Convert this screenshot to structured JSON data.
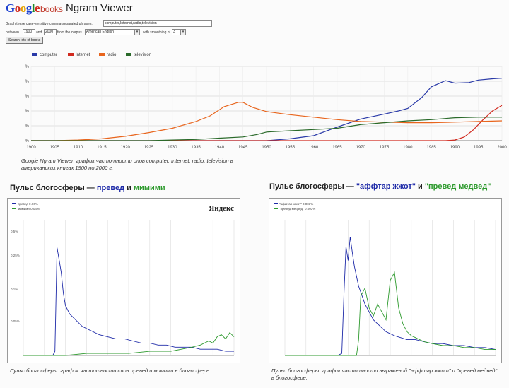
{
  "header": {
    "logo_letters": [
      {
        "ch": "G",
        "color": "b"
      },
      {
        "ch": "o",
        "color": "r"
      },
      {
        "ch": "o",
        "color": "y"
      },
      {
        "ch": "g",
        "color": "b"
      },
      {
        "ch": "l",
        "color": "g"
      },
      {
        "ch": "e",
        "color": "r"
      }
    ],
    "logo_books": "books",
    "logo_ngram": "Ngram Viewer",
    "graph_label": "Graph these case-sensitive comma-separated phrases:",
    "phrases_value": "computer,Internet,radio,television",
    "between_label": "between",
    "year_start": "1900",
    "and_label": "and",
    "year_end": "2000",
    "corpus_label": "from the corpus",
    "corpus_value": "American English",
    "smoothing_label": "with smoothing of",
    "smoothing_value": "3",
    "search_button": "Search lots of books"
  },
  "legend": [
    {
      "name": "computer",
      "color": "#2a3aa8"
    },
    {
      "name": "Internet",
      "color": "#d12a1f"
    },
    {
      "name": "radio",
      "color": "#e8651d"
    },
    {
      "name": "television",
      "color": "#2a6a2a"
    }
  ],
  "chart_data": [
    {
      "type": "line",
      "x_ticks": [
        1900,
        1905,
        1910,
        1915,
        1920,
        1925,
        1930,
        1935,
        1940,
        1945,
        1950,
        1955,
        1960,
        1965,
        1970,
        1975,
        1980,
        1985,
        1990,
        1995,
        2000
      ],
      "y_ticks": [
        "0.0%",
        "0.0024%",
        "0.0048%",
        "0.0072%",
        "0.0096%",
        "0.012%"
      ],
      "ylim": [
        0,
        0.012
      ],
      "xlim": [
        1900,
        2000
      ],
      "grid": true,
      "legend_position": "top-left",
      "series": [
        {
          "name": "computer",
          "color": "#2a3aa8",
          "x": [
            1900,
            1950,
            1955,
            1960,
            1965,
            1970,
            1975,
            1978,
            1980,
            1983,
            1985,
            1988,
            1990,
            1993,
            1995,
            1998,
            2000
          ],
          "y": [
            0,
            0,
            0.0003,
            0.0008,
            0.0022,
            0.0035,
            0.0043,
            0.0048,
            0.0052,
            0.007,
            0.0087,
            0.0097,
            0.0093,
            0.0094,
            0.0098,
            0.01,
            0.0101
          ]
        },
        {
          "name": "Internet",
          "color": "#d12a1f",
          "x": [
            1900,
            1985,
            1988,
            1990,
            1992,
            1994,
            1996,
            1998,
            2000
          ],
          "y": [
            0,
            0,
            0,
            0.0001,
            0.0006,
            0.0018,
            0.0034,
            0.0048,
            0.0057
          ]
        },
        {
          "name": "radio",
          "color": "#e8651d",
          "x": [
            1900,
            1905,
            1910,
            1915,
            1920,
            1925,
            1930,
            1935,
            1938,
            1941,
            1944,
            1945,
            1947,
            1950,
            1955,
            1960,
            1965,
            1970,
            1975,
            1980,
            1985,
            1990,
            1995,
            2000
          ],
          "y": [
            0,
            0,
            0.0001,
            0.0003,
            0.0007,
            0.0013,
            0.002,
            0.0031,
            0.004,
            0.0055,
            0.0062,
            0.0062,
            0.0054,
            0.0047,
            0.0042,
            0.0038,
            0.0034,
            0.0031,
            0.003,
            0.0029,
            0.0029,
            0.003,
            0.0031,
            0.0032
          ]
        },
        {
          "name": "television",
          "color": "#2a6a2a",
          "x": [
            1900,
            1925,
            1930,
            1935,
            1940,
            1945,
            1948,
            1950,
            1955,
            1960,
            1965,
            1970,
            1975,
            1980,
            1985,
            1990,
            1995,
            2000
          ],
          "y": [
            0,
            0,
            0.0001,
            0.0002,
            0.0004,
            0.0006,
            0.001,
            0.0014,
            0.0016,
            0.0018,
            0.002,
            0.0026,
            0.0029,
            0.0032,
            0.0034,
            0.0037,
            0.0038,
            0.0038
          ]
        }
      ]
    },
    {
      "type": "line",
      "title": "Пульс блогосферы — превед и мимими",
      "title_parts": [
        "Пульс блогосферы — ",
        "превед",
        " и ",
        "мимими"
      ],
      "y_ticks": [
        "0.5%",
        "0.25%",
        "0.1%",
        "0.05%"
      ],
      "legend_position": "top-left",
      "legend": [
        "превед 0.06%",
        "мимими 0.04%"
      ],
      "series": [
        {
          "name": "превед",
          "color": "#1e2aa8",
          "x": [
            0,
            5,
            10,
            14,
            15,
            16,
            17,
            18,
            19,
            20,
            22,
            25,
            28,
            32,
            36,
            40,
            44,
            48,
            52,
            56,
            60,
            64,
            68,
            72,
            76,
            80,
            84,
            88,
            92,
            96,
            100
          ],
          "y": [
            0,
            0,
            0,
            0,
            0.02,
            0.52,
            0.46,
            0.4,
            0.3,
            0.24,
            0.2,
            0.17,
            0.14,
            0.12,
            0.1,
            0.09,
            0.08,
            0.08,
            0.07,
            0.06,
            0.06,
            0.05,
            0.05,
            0.04,
            0.04,
            0.04,
            0.03,
            0.03,
            0.03,
            0.02,
            0.02
          ]
        },
        {
          "name": "мимими",
          "color": "#2e9a2e",
          "x": [
            0,
            10,
            20,
            30,
            40,
            50,
            60,
            70,
            75,
            80,
            84,
            88,
            90,
            92,
            94,
            96,
            98,
            100
          ],
          "y": [
            0,
            0,
            0,
            0.01,
            0.01,
            0.01,
            0.02,
            0.02,
            0.03,
            0.04,
            0.05,
            0.07,
            0.06,
            0.09,
            0.1,
            0.08,
            0.11,
            0.09
          ]
        }
      ],
      "caption": "Пульс блогосферы: график частотности слов превед и мимими в блогосфере."
    },
    {
      "type": "line",
      "title": "Пульс блогосферы — \"аффтар жжот\" и \"превед медвед\"",
      "title_parts": [
        "Пульс блогосферы — ",
        "\"аффтар жжот\"",
        " и ",
        "\"превед медвед\""
      ],
      "legend": [
        "\"аффтар жжот\" 0.003%",
        "\"превед медвед\" 0.003%"
      ],
      "legend_position": "top-left",
      "series": [
        {
          "name": "аффтар жжот",
          "color": "#1e2aa8",
          "x": [
            0,
            20,
            25,
            27,
            28,
            29,
            30,
            31,
            32,
            33,
            34,
            35,
            36,
            38,
            40,
            42,
            44,
            46,
            48,
            50,
            52,
            55,
            58,
            62,
            66,
            70,
            75,
            80,
            85,
            90,
            95,
            100
          ],
          "y": [
            0,
            0,
            0,
            0.01,
            0.3,
            0.55,
            0.48,
            0.6,
            0.52,
            0.45,
            0.4,
            0.35,
            0.32,
            0.26,
            0.22,
            0.18,
            0.16,
            0.14,
            0.12,
            0.11,
            0.1,
            0.09,
            0.08,
            0.08,
            0.07,
            0.06,
            0.06,
            0.05,
            0.05,
            0.04,
            0.04,
            0.03
          ]
        },
        {
          "name": "превед медвед",
          "color": "#2e9a2e",
          "x": [
            0,
            34,
            35,
            36,
            38,
            40,
            42,
            44,
            46,
            48,
            50,
            52,
            54,
            56,
            58,
            60,
            62,
            64,
            66,
            70,
            75,
            80,
            85,
            90,
            95,
            100
          ],
          "y": [
            0,
            0,
            0.08,
            0.3,
            0.34,
            0.24,
            0.2,
            0.26,
            0.22,
            0.18,
            0.38,
            0.42,
            0.24,
            0.16,
            0.12,
            0.1,
            0.09,
            0.08,
            0.07,
            0.06,
            0.05,
            0.05,
            0.04,
            0.04,
            0.03,
            0.03
          ]
        }
      ],
      "caption": "Пульс блогосферы: график частотности выражений \"аффтар жжот\" и \"превед медвед\" в блогосфере."
    }
  ],
  "ngram_caption": "Google Ngram Viewer: график частотности слов computer, Internet, radio, television в американских книгах 1900 по 2000 г.",
  "yandex_logo": "Яндекс"
}
